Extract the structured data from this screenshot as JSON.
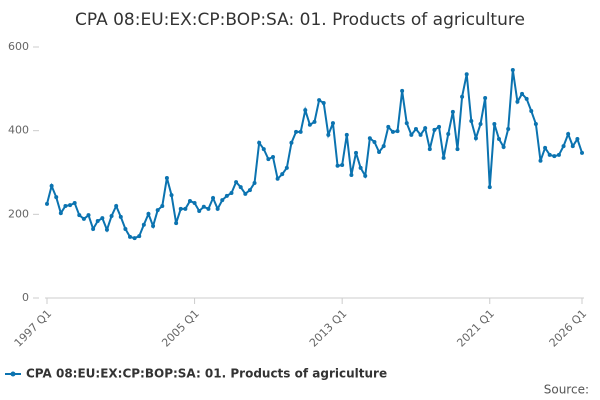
{
  "chart_data": {
    "type": "line",
    "title": "CPA 08:EU:EX:CP:BOP:SA: 01. Products of agriculture",
    "source": "Source:",
    "categories": [
      "1997 Q1",
      null,
      null,
      null,
      null,
      null,
      null,
      null,
      null,
      null,
      null,
      null,
      null,
      null,
      null,
      null,
      null,
      null,
      null,
      null,
      null,
      null,
      null,
      null,
      null,
      null,
      null,
      null,
      null,
      null,
      null,
      null,
      "2005 Q1",
      null,
      null,
      null,
      null,
      null,
      null,
      null,
      null,
      null,
      null,
      null,
      null,
      null,
      null,
      null,
      null,
      null,
      null,
      null,
      null,
      null,
      null,
      null,
      null,
      null,
      null,
      null,
      null,
      null,
      null,
      null,
      "2013 Q1",
      null,
      null,
      null,
      null,
      null,
      null,
      null,
      null,
      null,
      null,
      null,
      null,
      null,
      null,
      null,
      null,
      null,
      null,
      null,
      null,
      null,
      null,
      null,
      null,
      null,
      null,
      null,
      null,
      null,
      null,
      null,
      "2021 Q1",
      null,
      null,
      null,
      null,
      null,
      null,
      null,
      null,
      null,
      null,
      null,
      null,
      null,
      null,
      null,
      null,
      null,
      null,
      null,
      "2026 Q1"
    ],
    "series": [
      {
        "name": "CPA 08:EU:EX:CP:BOP:SA: 01. Products of agriculture",
        "color": "#0b73b0",
        "values": [
          225,
          268,
          241,
          203,
          220,
          222,
          227,
          198,
          189,
          198,
          165,
          184,
          191,
          163,
          196,
          220,
          194,
          165,
          146,
          143,
          148,
          175,
          201,
          172,
          210,
          220,
          287,
          246,
          179,
          213,
          213,
          232,
          227,
          208,
          218,
          213,
          239,
          213,
          234,
          244,
          251,
          277,
          265,
          249,
          258,
          275,
          371,
          356,
          332,
          337,
          285,
          296,
          311,
          371,
          397,
          397,
          449,
          414,
          421,
          473,
          466,
          390,
          418,
          316,
          318,
          390,
          294,
          347,
          311,
          292,
          382,
          373,
          349,
          363,
          409,
          397,
          399,
          495,
          418,
          390,
          404,
          390,
          406,
          356,
          402,
          409,
          335,
          392,
          445,
          356,
          481,
          535,
          423,
          382,
          416,
          478,
          265,
          416,
          380,
          361,
          404,
          545,
          469,
          488,
          476,
          447,
          416,
          328,
          359,
          342,
          339,
          342,
          363,
          392,
          363,
          380,
          347
        ]
      }
    ],
    "ylim": [
      0,
      600
    ],
    "yticks": [
      0,
      200,
      400,
      600
    ]
  }
}
